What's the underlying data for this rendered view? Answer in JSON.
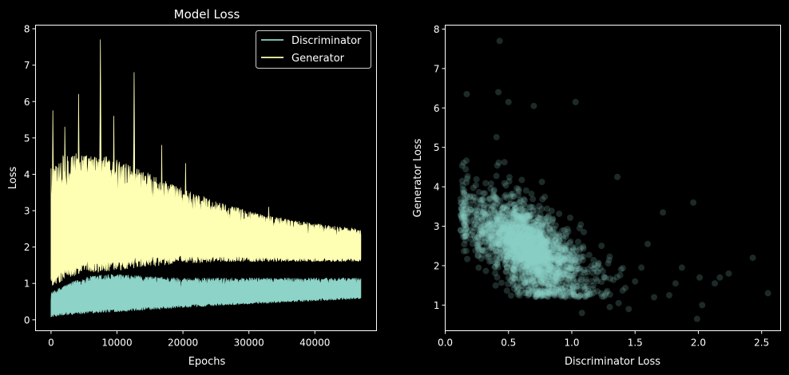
{
  "figure": {
    "background": "#000000",
    "text_color": "#ffffff"
  },
  "chart_data": [
    {
      "type": "line",
      "title": "Model Loss",
      "xlabel": "Epochs",
      "ylabel": "Loss",
      "xlim": [
        -2350,
        49350
      ],
      "ylim": [
        -0.3,
        8.1
      ],
      "xticks": [
        0,
        10000,
        20000,
        30000,
        40000
      ],
      "xtick_labels": [
        "0",
        "10000",
        "20000",
        "30000",
        "40000"
      ],
      "yticks": [
        0,
        1,
        2,
        3,
        4,
        5,
        6,
        7,
        8
      ],
      "ytick_labels": [
        "0",
        "1",
        "2",
        "3",
        "4",
        "5",
        "6",
        "7",
        "8"
      ],
      "grid": false,
      "legend": {
        "placement": "upper right",
        "entries": [
          "Discriminator",
          "Generator"
        ]
      },
      "series": [
        {
          "name": "Discriminator",
          "color": "#8dd3c7",
          "x": [
            0,
            2000,
            4000,
            6000,
            8000,
            10000,
            14000,
            20000,
            26000,
            32000,
            38000,
            44000,
            47000
          ],
          "lower": [
            0.08,
            0.12,
            0.16,
            0.18,
            0.2,
            0.22,
            0.26,
            0.33,
            0.4,
            0.45,
            0.5,
            0.55,
            0.58
          ],
          "upper": [
            0.75,
            0.95,
            1.1,
            1.2,
            1.25,
            1.25,
            1.2,
            1.15,
            1.15,
            1.15,
            1.15,
            1.15,
            1.15
          ]
        },
        {
          "name": "Generator",
          "color": "#ffffb3",
          "x": [
            0,
            2000,
            4000,
            6000,
            8000,
            10000,
            14000,
            20000,
            26000,
            32000,
            38000,
            44000,
            47000
          ],
          "lower": [
            0.9,
            1.1,
            1.2,
            1.3,
            1.3,
            1.35,
            1.45,
            1.55,
            1.6,
            1.6,
            1.6,
            1.6,
            1.6
          ],
          "upper": [
            4.2,
            4.6,
            4.6,
            4.5,
            4.5,
            4.4,
            4.1,
            3.6,
            3.2,
            2.9,
            2.7,
            2.55,
            2.5
          ],
          "peaks": [
            [
              300,
              5.75
            ],
            [
              2100,
              5.3
            ],
            [
              4200,
              6.2
            ],
            [
              7500,
              7.7
            ],
            [
              9500,
              5.6
            ],
            [
              12600,
              6.8
            ],
            [
              16800,
              4.8
            ],
            [
              20400,
              4.3
            ],
            [
              33000,
              3.1
            ]
          ]
        }
      ]
    },
    {
      "type": "scatter",
      "xlabel": "Discriminator Loss",
      "ylabel": "Generator Loss",
      "xlim": [
        0.0,
        2.65
      ],
      "ylim": [
        0.35,
        8.1
      ],
      "xticks": [
        0.0,
        0.5,
        1.0,
        1.5,
        2.0,
        2.5
      ],
      "xtick_labels": [
        "0.0",
        "0.5",
        "1.0",
        "1.5",
        "2.0",
        "2.5"
      ],
      "yticks": [
        1,
        2,
        3,
        4,
        5,
        6,
        7,
        8
      ],
      "ytick_labels": [
        "1",
        "2",
        "3",
        "4",
        "5",
        "6",
        "7",
        "8"
      ],
      "grid": false,
      "color": "#8dd3c7",
      "marker_alpha": 0.2,
      "cluster": {
        "center": [
          0.65,
          2.45
        ],
        "spread": [
          0.18,
          0.55
        ],
        "correlation": -0.62
      },
      "outliers": [
        [
          0.43,
          7.7
        ],
        [
          0.17,
          6.35
        ],
        [
          0.42,
          6.4
        ],
        [
          0.5,
          6.15
        ],
        [
          0.7,
          6.05
        ],
        [
          1.03,
          6.15
        ],
        [
          1.36,
          4.25
        ],
        [
          1.96,
          3.6
        ],
        [
          1.72,
          3.35
        ],
        [
          2.55,
          1.3
        ],
        [
          2.43,
          2.2
        ],
        [
          2.24,
          1.8
        ],
        [
          2.17,
          1.7
        ],
        [
          2.13,
          1.55
        ],
        [
          2.01,
          1.7
        ],
        [
          2.03,
          1.0
        ],
        [
          1.99,
          0.65
        ],
        [
          1.87,
          1.95
        ],
        [
          1.82,
          1.55
        ],
        [
          1.77,
          1.25
        ],
        [
          1.65,
          1.2
        ],
        [
          1.6,
          2.55
        ],
        [
          1.55,
          1.95
        ],
        [
          1.5,
          1.6
        ],
        [
          1.45,
          0.9
        ],
        [
          1.37,
          1.05
        ],
        [
          1.3,
          0.95
        ],
        [
          1.08,
          0.8
        ]
      ]
    }
  ]
}
